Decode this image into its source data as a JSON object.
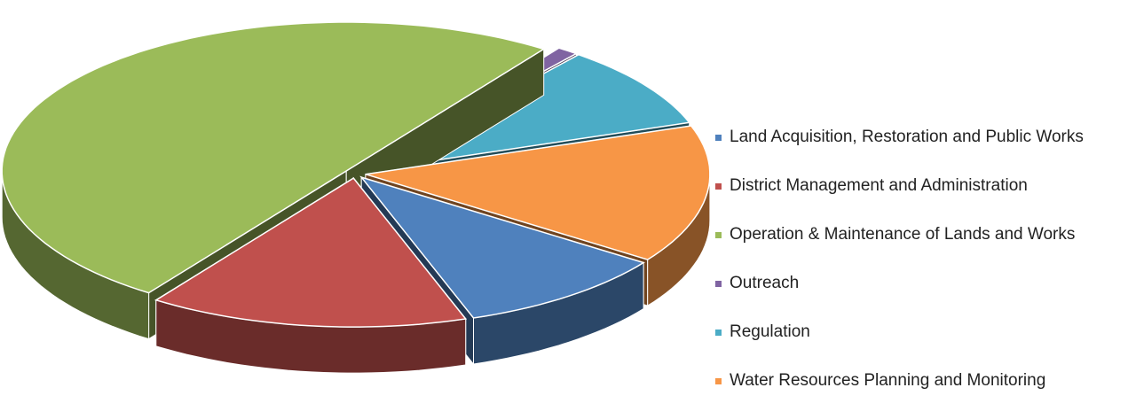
{
  "chart_data": {
    "type": "pie3d",
    "categories": [
      "Land Acquisition, Restoration and Public Works",
      "District Management and Administration",
      "Operation & Maintenance of Lands and Works",
      "Outreach",
      "Regulation",
      "Water Resources Planning and Monitoring"
    ],
    "values": [
      10,
      15,
      50,
      1,
      9,
      15
    ],
    "colors": [
      "#4f81bd",
      "#c0504d",
      "#9bbb59",
      "#8064a2",
      "#4bacc6",
      "#f79646"
    ],
    "legend": "right"
  }
}
